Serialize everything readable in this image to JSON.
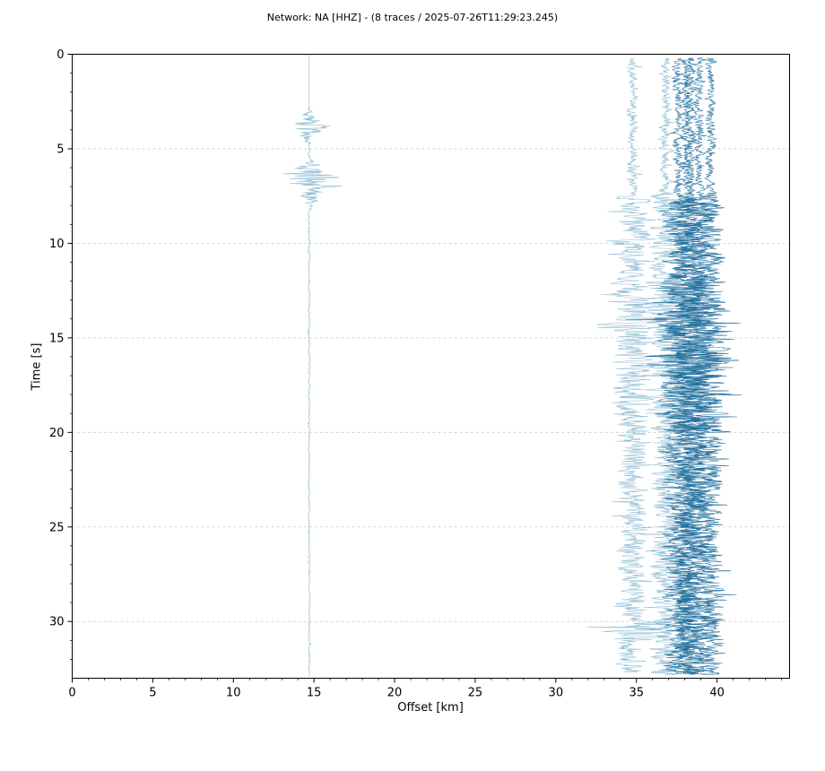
{
  "chart_data": {
    "type": "line",
    "title": "Network: NA [HHZ] - (8 traces / 2025-07-26T11:29:23.245)",
    "xlabel": "Offset [km]",
    "ylabel": "Time [s]",
    "xlim": [
      0,
      44.5
    ],
    "ylim": [
      33,
      0
    ],
    "y_inverted": true,
    "x_ticks": [
      0,
      5,
      10,
      15,
      20,
      25,
      30,
      35,
      40
    ],
    "y_ticks": [
      0,
      5,
      10,
      15,
      20,
      25,
      30
    ],
    "grid": "horizontal-dashed",
    "legend": "none",
    "trace_color_light": "#8ab9d3",
    "trace_color_dark": "#1f6e9c",
    "series": [
      {
        "offset_km": 14.7,
        "start_s": 0.0,
        "end_s": 32.9,
        "events": [
          {
            "t": 3.8,
            "amp_km": 1.7
          },
          {
            "t": 6.5,
            "amp_km": 3.2
          },
          {
            "t": 7.3,
            "amp_km": 1.3
          }
        ]
      },
      {
        "offset_km": 34.8,
        "start_s": 0.2,
        "end_s": 32.7,
        "events": [
          {
            "t": 6.2,
            "amp_km": 0.8
          },
          {
            "t": 9.8,
            "amp_km": 2.4
          },
          {
            "t": 14.2,
            "amp_km": 2.9
          },
          {
            "t": 30.6,
            "amp_km": 3.5
          }
        ]
      },
      {
        "offset_km": 36.8,
        "start_s": 0.2,
        "end_s": 32.8,
        "events": [
          {
            "t": 7.6,
            "amp_km": 1.5
          },
          {
            "t": 13.5,
            "amp_km": 2.5
          },
          {
            "t": 16.0,
            "amp_km": 2.4
          }
        ]
      },
      {
        "offset_km": 37.6,
        "start_s": 0.2,
        "end_s": 32.7,
        "events": [
          {
            "t": 13.8,
            "amp_km": 2.4
          },
          {
            "t": 16.8,
            "amp_km": 2.2
          }
        ]
      },
      {
        "offset_km": 38.1,
        "start_s": 0.2,
        "end_s": 32.8,
        "events": [
          {
            "t": 14.0,
            "amp_km": 3.4
          },
          {
            "t": 16.1,
            "amp_km": 4.6
          }
        ]
      },
      {
        "offset_km": 38.4,
        "start_s": 0.2,
        "end_s": 32.8,
        "events": [
          {
            "t": 14.8,
            "amp_km": 3.0
          },
          {
            "t": 18.0,
            "amp_km": 2.3
          }
        ]
      },
      {
        "offset_km": 38.9,
        "start_s": 0.2,
        "end_s": 32.8,
        "events": [
          {
            "t": 15.5,
            "amp_km": 2.4
          }
        ]
      },
      {
        "offset_km": 39.6,
        "start_s": 0.2,
        "end_s": 32.8,
        "events": [
          {
            "t": 7.8,
            "amp_km": 1.1
          },
          {
            "t": 15.0,
            "amp_km": 2.0
          }
        ]
      }
    ]
  }
}
